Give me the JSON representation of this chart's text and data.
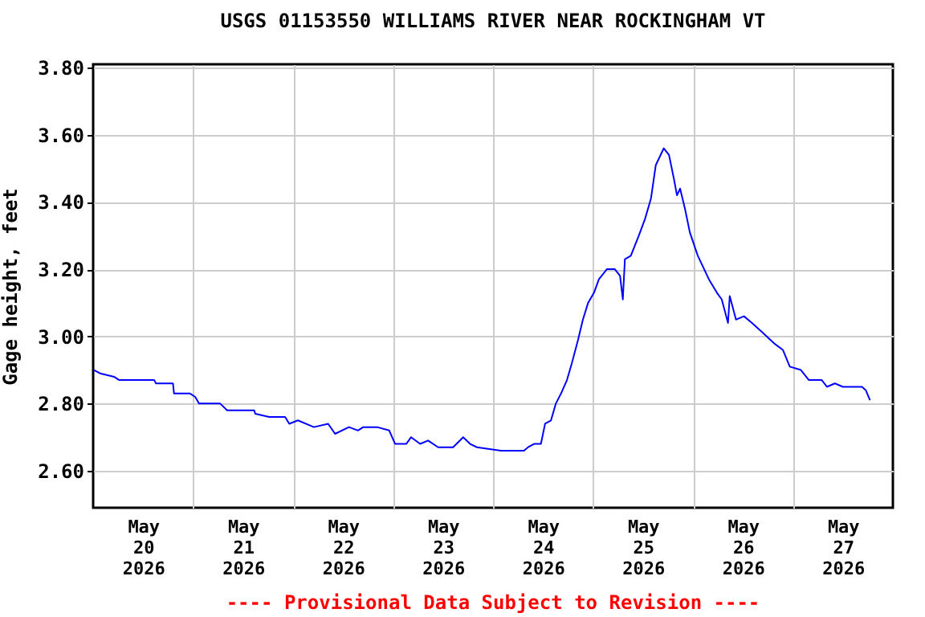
{
  "chart_data": {
    "type": "line",
    "title": "USGS 01153550 WILLIAMS RIVER NEAR ROCKINGHAM VT",
    "ylabel": "Gage height, feet",
    "annotations": [
      "---- Provisional Data Subject to Revision ----"
    ],
    "grid": true,
    "xlim": [
      "2026-05-20T00:00",
      "2026-05-28T00:00"
    ],
    "ylim": [
      2.49,
      3.81
    ],
    "xticks": [
      {
        "value": "2026-05-20T12:00",
        "label": "May 20 2026"
      },
      {
        "value": "2026-05-21T00:00",
        "label": null
      },
      {
        "value": "2026-05-21T12:00",
        "label": "May 21 2026"
      },
      {
        "value": "2026-05-22T00:00",
        "label": null
      },
      {
        "value": "2026-05-22T12:00",
        "label": "May 22 2026"
      },
      {
        "value": "2026-05-23T00:00",
        "label": null
      },
      {
        "value": "2026-05-23T12:00",
        "label": "May 23 2026"
      },
      {
        "value": "2026-05-24T00:00",
        "label": null
      },
      {
        "value": "2026-05-24T12:00",
        "label": "May 24 2026"
      },
      {
        "value": "2026-05-25T00:00",
        "label": null
      },
      {
        "value": "2026-05-25T12:00",
        "label": "May 25 2026"
      },
      {
        "value": "2026-05-26T00:00",
        "label": null
      },
      {
        "value": "2026-05-26T12:00",
        "label": "May 26 2026"
      },
      {
        "value": "2026-05-27T00:00",
        "label": null
      },
      {
        "value": "2026-05-27T12:00",
        "label": "May 27 2026"
      }
    ],
    "yticks": [
      {
        "value": 2.6,
        "label": "2.60"
      },
      {
        "value": 2.8,
        "label": "2.80"
      },
      {
        "value": 3.0,
        "label": "3.00"
      },
      {
        "value": 3.2,
        "label": "3.20"
      },
      {
        "value": 3.4,
        "label": "3.40"
      },
      {
        "value": 3.6,
        "label": "3.60"
      },
      {
        "value": 3.8,
        "label": "3.80"
      }
    ],
    "x": [
      "2026-05-20T00:10",
      "2026-05-20T01:40",
      "2026-05-20T05:00",
      "2026-05-20T06:15",
      "2026-05-20T14:40",
      "2026-05-20T15:05",
      "2026-05-20T19:10",
      "2026-05-20T19:25",
      "2026-05-20T23:15",
      "2026-05-21T00:30",
      "2026-05-21T01:25",
      "2026-05-21T06:30",
      "2026-05-21T08:10",
      "2026-05-21T14:40",
      "2026-05-21T14:55",
      "2026-05-21T18:15",
      "2026-05-21T22:05",
      "2026-05-21T23:05",
      "2026-05-22T01:10",
      "2026-05-22T05:00",
      "2026-05-22T08:25",
      "2026-05-22T10:05",
      "2026-05-22T13:25",
      "2026-05-22T15:35",
      "2026-05-22T16:50",
      "2026-05-22T20:10",
      "2026-05-22T23:05",
      "2026-05-23T00:30",
      "2026-05-23T03:10",
      "2026-05-23T04:20",
      "2026-05-23T06:30",
      "2026-05-23T08:25",
      "2026-05-23T10:50",
      "2026-05-23T14:25",
      "2026-05-23T16:50",
      "2026-05-23T18:30",
      "2026-05-23T20:10",
      "2026-05-24T01:55",
      "2026-05-24T07:25",
      "2026-05-24T08:25",
      "2026-05-24T09:50",
      "2026-05-24T11:30",
      "2026-05-24T12:30",
      "2026-05-24T13:55",
      "2026-05-24T15:05",
      "2026-05-24T16:20",
      "2026-05-24T17:45",
      "2026-05-24T18:55",
      "2026-05-24T20:25",
      "2026-05-24T21:35",
      "2026-05-24T22:50",
      "2026-05-25T00:15",
      "2026-05-25T01:25",
      "2026-05-25T03:20",
      "2026-05-25T05:15",
      "2026-05-25T06:30",
      "2026-05-25T07:10",
      "2026-05-25T07:40",
      "2026-05-25T09:05",
      "2026-05-25T11:00",
      "2026-05-25T12:30",
      "2026-05-25T13:55",
      "2026-05-25T15:05",
      "2026-05-25T17:00",
      "2026-05-25T18:15",
      "2026-05-25T19:25",
      "2026-05-25T20:10",
      "2026-05-25T20:55",
      "2026-05-25T22:05",
      "2026-05-25T23:15",
      "2026-05-26T01:10",
      "2026-05-26T03:50",
      "2026-05-26T05:45",
      "2026-05-26T06:55",
      "2026-05-26T08:25",
      "2026-05-26T08:50",
      "2026-05-26T10:20",
      "2026-05-26T12:15",
      "2026-05-26T14:10",
      "2026-05-26T16:50",
      "2026-05-26T19:25",
      "2026-05-26T21:35",
      "2026-05-26T23:15",
      "2026-05-27T01:55",
      "2026-05-27T03:50",
      "2026-05-27T06:55",
      "2026-05-27T08:10",
      "2026-05-27T10:05",
      "2026-05-27T12:00",
      "2026-05-27T14:10",
      "2026-05-27T16:35",
      "2026-05-27T17:30",
      "2026-05-27T18:30"
    ],
    "series": [
      {
        "color": "#0000ff",
        "values": [
          2.9,
          2.89,
          2.88,
          2.87,
          2.87,
          2.86,
          2.86,
          2.83,
          2.83,
          2.82,
          2.8,
          2.8,
          2.78,
          2.78,
          2.77,
          2.76,
          2.76,
          2.74,
          2.75,
          2.73,
          2.74,
          2.71,
          2.73,
          2.72,
          2.73,
          2.73,
          2.72,
          2.68,
          2.68,
          2.7,
          2.68,
          2.69,
          2.67,
          2.67,
          2.7,
          2.68,
          2.67,
          2.66,
          2.66,
          2.67,
          2.68,
          2.68,
          2.74,
          2.75,
          2.8,
          2.83,
          2.87,
          2.92,
          2.99,
          3.05,
          3.1,
          3.13,
          3.17,
          3.2,
          3.2,
          3.18,
          3.11,
          3.23,
          3.24,
          3.3,
          3.35,
          3.41,
          3.51,
          3.56,
          3.54,
          3.47,
          3.42,
          3.44,
          3.38,
          3.31,
          3.24,
          3.17,
          3.13,
          3.11,
          3.04,
          3.12,
          3.05,
          3.06,
          3.04,
          3.01,
          2.98,
          2.96,
          2.91,
          2.9,
          2.87,
          2.87,
          2.85,
          2.86,
          2.85,
          2.85,
          2.85,
          2.84,
          2.81
        ]
      }
    ]
  }
}
